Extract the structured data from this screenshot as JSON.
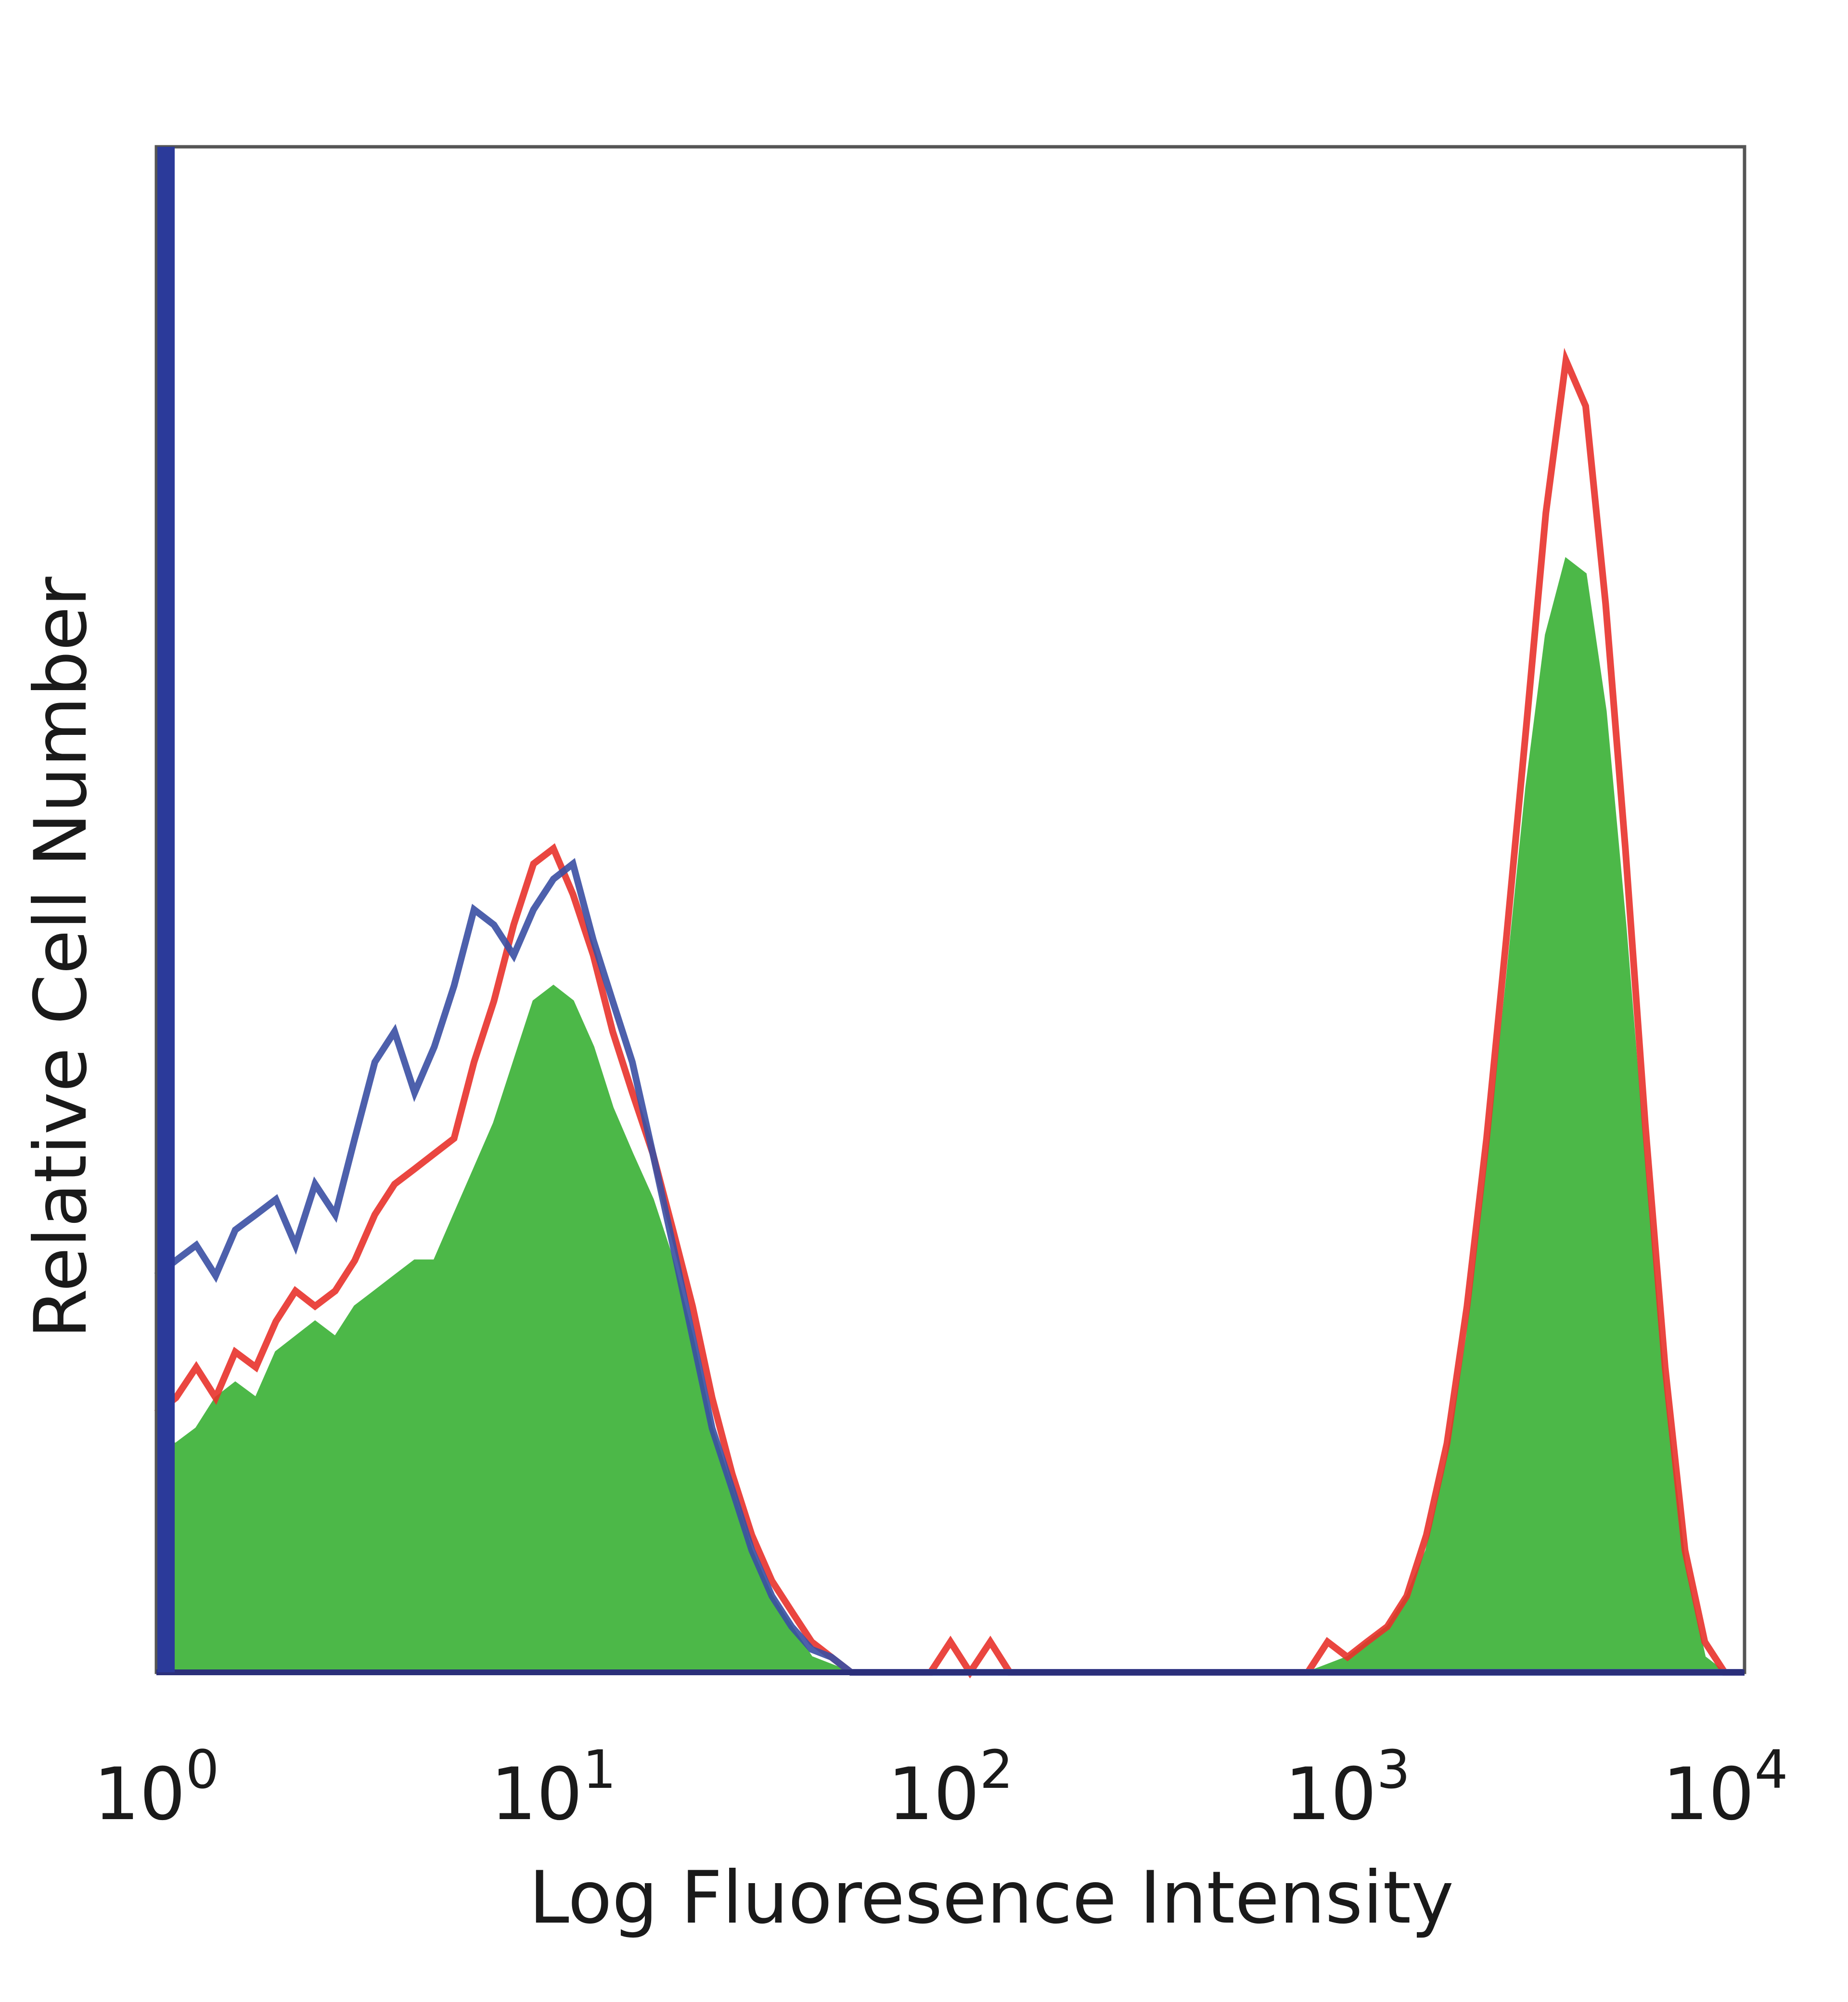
{
  "chart_data": {
    "type": "area",
    "title": "",
    "xlabel": "Log Fluoresence Intensity",
    "ylabel": "Relative Cell Number",
    "x_scale": "log",
    "xlim": [
      1,
      10000
    ],
    "ylim": [
      0,
      100
    ],
    "grid": false,
    "legend": "none",
    "x_ticks": [
      {
        "value": 1,
        "base": "10",
        "exp": "0"
      },
      {
        "value": 10,
        "base": "10",
        "exp": "1"
      },
      {
        "value": 100,
        "base": "10",
        "exp": "2"
      },
      {
        "value": 1000,
        "base": "10",
        "exp": "3"
      },
      {
        "value": 10000,
        "base": "10",
        "exp": "4"
      }
    ],
    "x": [
      1.0,
      1.12,
      1.26,
      1.41,
      1.58,
      1.78,
      2.0,
      2.24,
      2.51,
      2.82,
      3.16,
      3.55,
      3.98,
      4.47,
      5.01,
      5.62,
      6.31,
      7.08,
      7.94,
      8.91,
      10.0,
      11.2,
      12.6,
      14.1,
      15.8,
      17.8,
      20.0,
      22.4,
      25.1,
      28.2,
      31.6,
      35.5,
      39.8,
      44.7,
      50.1,
      56.2,
      63.1,
      70.8,
      79.4,
      89.1,
      100,
      112,
      126,
      141,
      158,
      178,
      200,
      224,
      251,
      282,
      316,
      355,
      398,
      447,
      501,
      562,
      631,
      708,
      794,
      891,
      1000,
      1120,
      1260,
      1410,
      1580,
      1780,
      2000,
      2240,
      2510,
      2820,
      3160,
      3550,
      3980,
      4470,
      5010,
      5620,
      6310,
      7080,
      7940,
      8910,
      10000
    ],
    "series": [
      {
        "color": "#4cb848",
        "fill": true,
        "values": [
          15,
          15,
          16,
          18,
          19,
          18,
          21,
          22,
          23,
          22,
          24,
          25,
          26,
          27,
          27,
          30,
          33,
          36,
          40,
          44,
          45,
          44,
          41,
          37,
          34,
          31,
          27,
          22,
          16,
          12,
          8,
          5,
          3,
          1,
          0.5,
          0,
          0,
          0,
          0,
          0,
          0,
          0,
          0,
          0,
          0,
          0,
          0,
          0,
          0,
          0,
          0,
          0,
          0,
          0,
          0,
          0,
          0,
          0,
          0,
          0.5,
          1,
          2,
          3,
          5,
          8,
          14,
          22,
          33,
          45,
          58,
          68,
          73,
          72,
          63,
          49,
          33,
          18,
          7,
          1,
          0,
          0
        ]
      },
      {
        "color": "#e8322b",
        "fill": false,
        "values": [
          17,
          18,
          20,
          18,
          21,
          20,
          23,
          25,
          24,
          25,
          27,
          30,
          32,
          33,
          34,
          35,
          40,
          44,
          49,
          53,
          54,
          51,
          47,
          42,
          38,
          34,
          29,
          24,
          18,
          13,
          9,
          6,
          4,
          2,
          1,
          0,
          0,
          0,
          0,
          0,
          2,
          0,
          2,
          0,
          0,
          0,
          0,
          0,
          0,
          0,
          0,
          0,
          0,
          0,
          0,
          0,
          0,
          0,
          0,
          2,
          1,
          2,
          3,
          5,
          9,
          15,
          24,
          35,
          48,
          62,
          76,
          86,
          83,
          70,
          54,
          36,
          20,
          8,
          2,
          0,
          0
        ]
      },
      {
        "color": "#3a4fa3",
        "fill": false,
        "values": [
          26,
          27,
          28,
          26,
          29,
          30,
          31,
          28,
          32,
          30,
          35,
          40,
          42,
          38,
          41,
          45,
          50,
          49,
          47,
          50,
          52,
          53,
          48,
          44,
          40,
          34,
          28,
          22,
          16,
          12,
          8,
          5,
          3,
          1.5,
          1,
          0,
          0,
          0,
          0,
          0,
          0,
          0,
          0,
          0,
          0,
          0,
          0,
          0,
          0,
          0,
          0,
          0,
          0,
          0,
          0,
          0,
          0,
          0,
          0,
          0,
          0,
          0,
          0,
          0,
          0,
          0,
          0,
          0,
          0,
          0,
          0,
          0,
          0,
          0,
          0,
          0,
          0,
          0,
          0,
          0,
          0
        ]
      }
    ]
  }
}
